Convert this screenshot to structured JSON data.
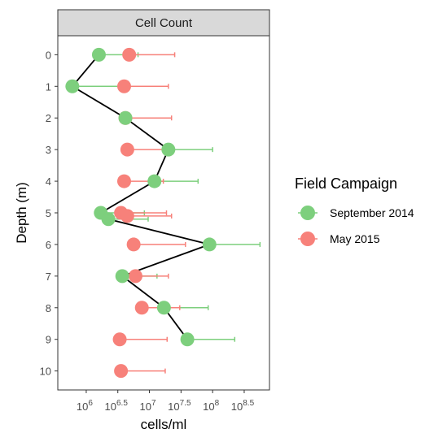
{
  "chart_data": {
    "type": "scatter",
    "strip_label": "Cell Count",
    "xlabel": "cells/ml",
    "ylabel": "Depth (m)",
    "x_scale": "log10",
    "xlim": [
      5.55,
      8.9
    ],
    "ylim": [
      10.6,
      -0.6
    ],
    "y_reversed": true,
    "grid": false,
    "x_ticks": [
      {
        "exp": "6"
      },
      {
        "exp": "6.5"
      },
      {
        "exp": "7"
      },
      {
        "exp": "7.5"
      },
      {
        "exp": "8"
      },
      {
        "exp": "8.5"
      }
    ],
    "x_tick_base": "10",
    "x_tick_values": [
      6,
      6.5,
      7,
      7.5,
      8,
      8.5
    ],
    "y_ticks": [
      "0",
      "1",
      "2",
      "3",
      "4",
      "5",
      "6",
      "7",
      "8",
      "9",
      "10"
    ],
    "y_tick_values": [
      0,
      1,
      2,
      3,
      4,
      5,
      6,
      7,
      8,
      9,
      10
    ],
    "legend": {
      "title": "Field Campaign",
      "position": "right",
      "entries": [
        "September 2014",
        "May 2015"
      ]
    },
    "series": [
      {
        "name": "September 2014",
        "color": "#7dcf7d",
        "line_connected": true,
        "points": [
          {
            "depth": 0,
            "log10_cells": 6.2,
            "error_upper": 6.82
          },
          {
            "depth": 1,
            "log10_cells": 5.78,
            "error_upper": 6.55
          },
          {
            "depth": 2,
            "log10_cells": 6.62,
            "error_upper": null
          },
          {
            "depth": 3,
            "log10_cells": 7.3,
            "error_upper": 8.0
          },
          {
            "depth": 4,
            "log10_cells": 7.08,
            "error_upper": 7.77
          },
          {
            "depth": 5,
            "log10_cells": 6.23,
            "error_upper": 6.92
          },
          {
            "depth": 5.2,
            "log10_cells": 6.35,
            "error_upper": 6.98
          },
          {
            "depth": 6,
            "log10_cells": 7.95,
            "error_upper": 8.75
          },
          {
            "depth": 7,
            "log10_cells": 6.57,
            "error_upper": 7.12
          },
          {
            "depth": 8,
            "log10_cells": 7.23,
            "error_upper": 7.93
          },
          {
            "depth": 9,
            "log10_cells": 7.6,
            "error_upper": 8.35
          }
        ]
      },
      {
        "name": "May 2015",
        "color": "#f7817a",
        "line_connected": false,
        "points": [
          {
            "depth": 0,
            "log10_cells": 6.68,
            "error_upper": 7.4
          },
          {
            "depth": 1,
            "log10_cells": 6.6,
            "error_upper": 7.3
          },
          {
            "depth": 2,
            "log10_cells": 6.62,
            "error_upper": 7.35
          },
          {
            "depth": 3,
            "log10_cells": 6.65,
            "error_upper": 7.28
          },
          {
            "depth": 4,
            "log10_cells": 6.6,
            "error_upper": 7.22
          },
          {
            "depth": 5,
            "log10_cells": 6.55,
            "error_upper": 7.27
          },
          {
            "depth": 5.1,
            "log10_cells": 6.65,
            "error_upper": 7.35
          },
          {
            "depth": 6,
            "log10_cells": 6.75,
            "error_upper": 7.57
          },
          {
            "depth": 7,
            "log10_cells": 6.78,
            "error_upper": 7.3
          },
          {
            "depth": 8,
            "log10_cells": 6.88,
            "error_upper": 7.48
          },
          {
            "depth": 9,
            "log10_cells": 6.53,
            "error_upper": 7.28
          },
          {
            "depth": 10,
            "log10_cells": 6.55,
            "error_upper": 7.25
          }
        ]
      }
    ]
  }
}
